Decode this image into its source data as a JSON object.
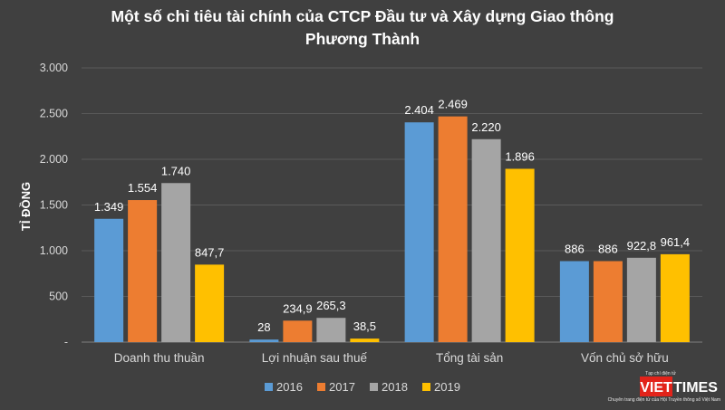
{
  "chart_data": {
    "type": "bar",
    "title_line1": "Một số chỉ tiêu tài chính của CTCP Đầu tư và Xây dựng Giao thông",
    "title_line2": "Phương Thành",
    "ylabel": "TỈ ĐỒNG",
    "xlabel": "",
    "ylim": [
      0,
      3000
    ],
    "yticks": [
      0,
      500,
      1000,
      1500,
      2000,
      2500,
      3000
    ],
    "ytick_labels": [
      "-",
      "500",
      "1.000",
      "1.500",
      "2.000",
      "2.500",
      "3.000"
    ],
    "grid": true,
    "legend_position": "bottom",
    "categories": [
      "Doanh thu thuần",
      "Lợi nhuận sau thuế",
      "Tổng tài sản",
      "Vốn chủ sở hữu"
    ],
    "series": [
      {
        "name": "2016",
        "color": "#5b9bd5",
        "values": [
          1349,
          28,
          2404,
          886
        ],
        "labels": [
          "1.349",
          "28",
          "2.404",
          "886"
        ]
      },
      {
        "name": "2017",
        "color": "#ed7d31",
        "values": [
          1554,
          234.9,
          2469,
          886
        ],
        "labels": [
          "1.554",
          "234,9",
          "2.469",
          "886"
        ]
      },
      {
        "name": "2018",
        "color": "#a5a5a5",
        "values": [
          1740,
          265.3,
          2220,
          922.8
        ],
        "labels": [
          "1.740",
          "265,3",
          "2.220",
          "922,8"
        ]
      },
      {
        "name": "2019",
        "color": "#ffc000",
        "values": [
          847.7,
          38.5,
          1896,
          961.4
        ],
        "labels": [
          "847,7",
          "38,5",
          "1.896",
          "961,4"
        ]
      }
    ]
  },
  "watermark": {
    "brand_viet": "VIET",
    "brand_times": "TIMES",
    "tagline_top": "Tạp chí điện tử",
    "tagline_bottom": "Chuyên trang điện tử của Hội Truyền thông số Việt Nam",
    "brand_color": "#e2231a"
  }
}
